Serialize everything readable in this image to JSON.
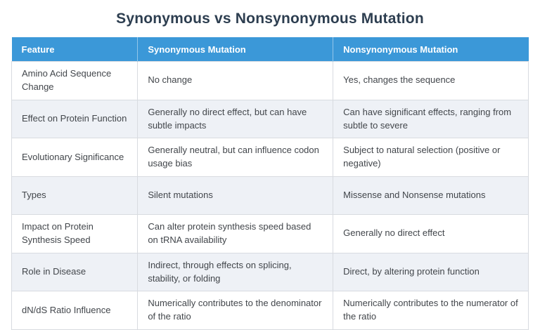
{
  "page": {
    "title": "Synonymous vs Nonsynonymous Mutation"
  },
  "table": {
    "columns": [
      "Feature",
      "Synonymous Mutation",
      "Nonsynonymous Mutation"
    ],
    "rows": [
      [
        "Amino Acid Sequence Change",
        "No change",
        "Yes, changes the sequence"
      ],
      [
        "Effect on Protein Function",
        "Generally no direct effect, but can have subtle impacts",
        "Can have significant effects, ranging from subtle to severe"
      ],
      [
        "Evolutionary Significance",
        "Generally neutral, but can influence codon usage bias",
        "Subject to natural selection (positive or negative)"
      ],
      [
        "Types",
        "Silent mutations",
        "Missense and Nonsense mutations"
      ],
      [
        "Impact on Protein Synthesis Speed",
        "Can alter protein synthesis speed based on tRNA availability",
        "Generally no direct effect"
      ],
      [
        "Role in Disease",
        "Indirect, through effects on splicing, stability, or folding",
        "Direct, by altering protein function"
      ],
      [
        "dN/dS Ratio Influence",
        "Numerically contributes to the denominator of the ratio",
        "Numerically contributes to the numerator of the ratio"
      ]
    ]
  },
  "colors": {
    "header_bg": "#3b98d8",
    "header_text": "#ffffff",
    "row_alt_bg": "#eef1f6",
    "row_bg": "#ffffff",
    "border": "#d8dbe0",
    "title_text": "#2d3e50",
    "cell_text": "#42464b",
    "page_bg": "#ffffff"
  }
}
